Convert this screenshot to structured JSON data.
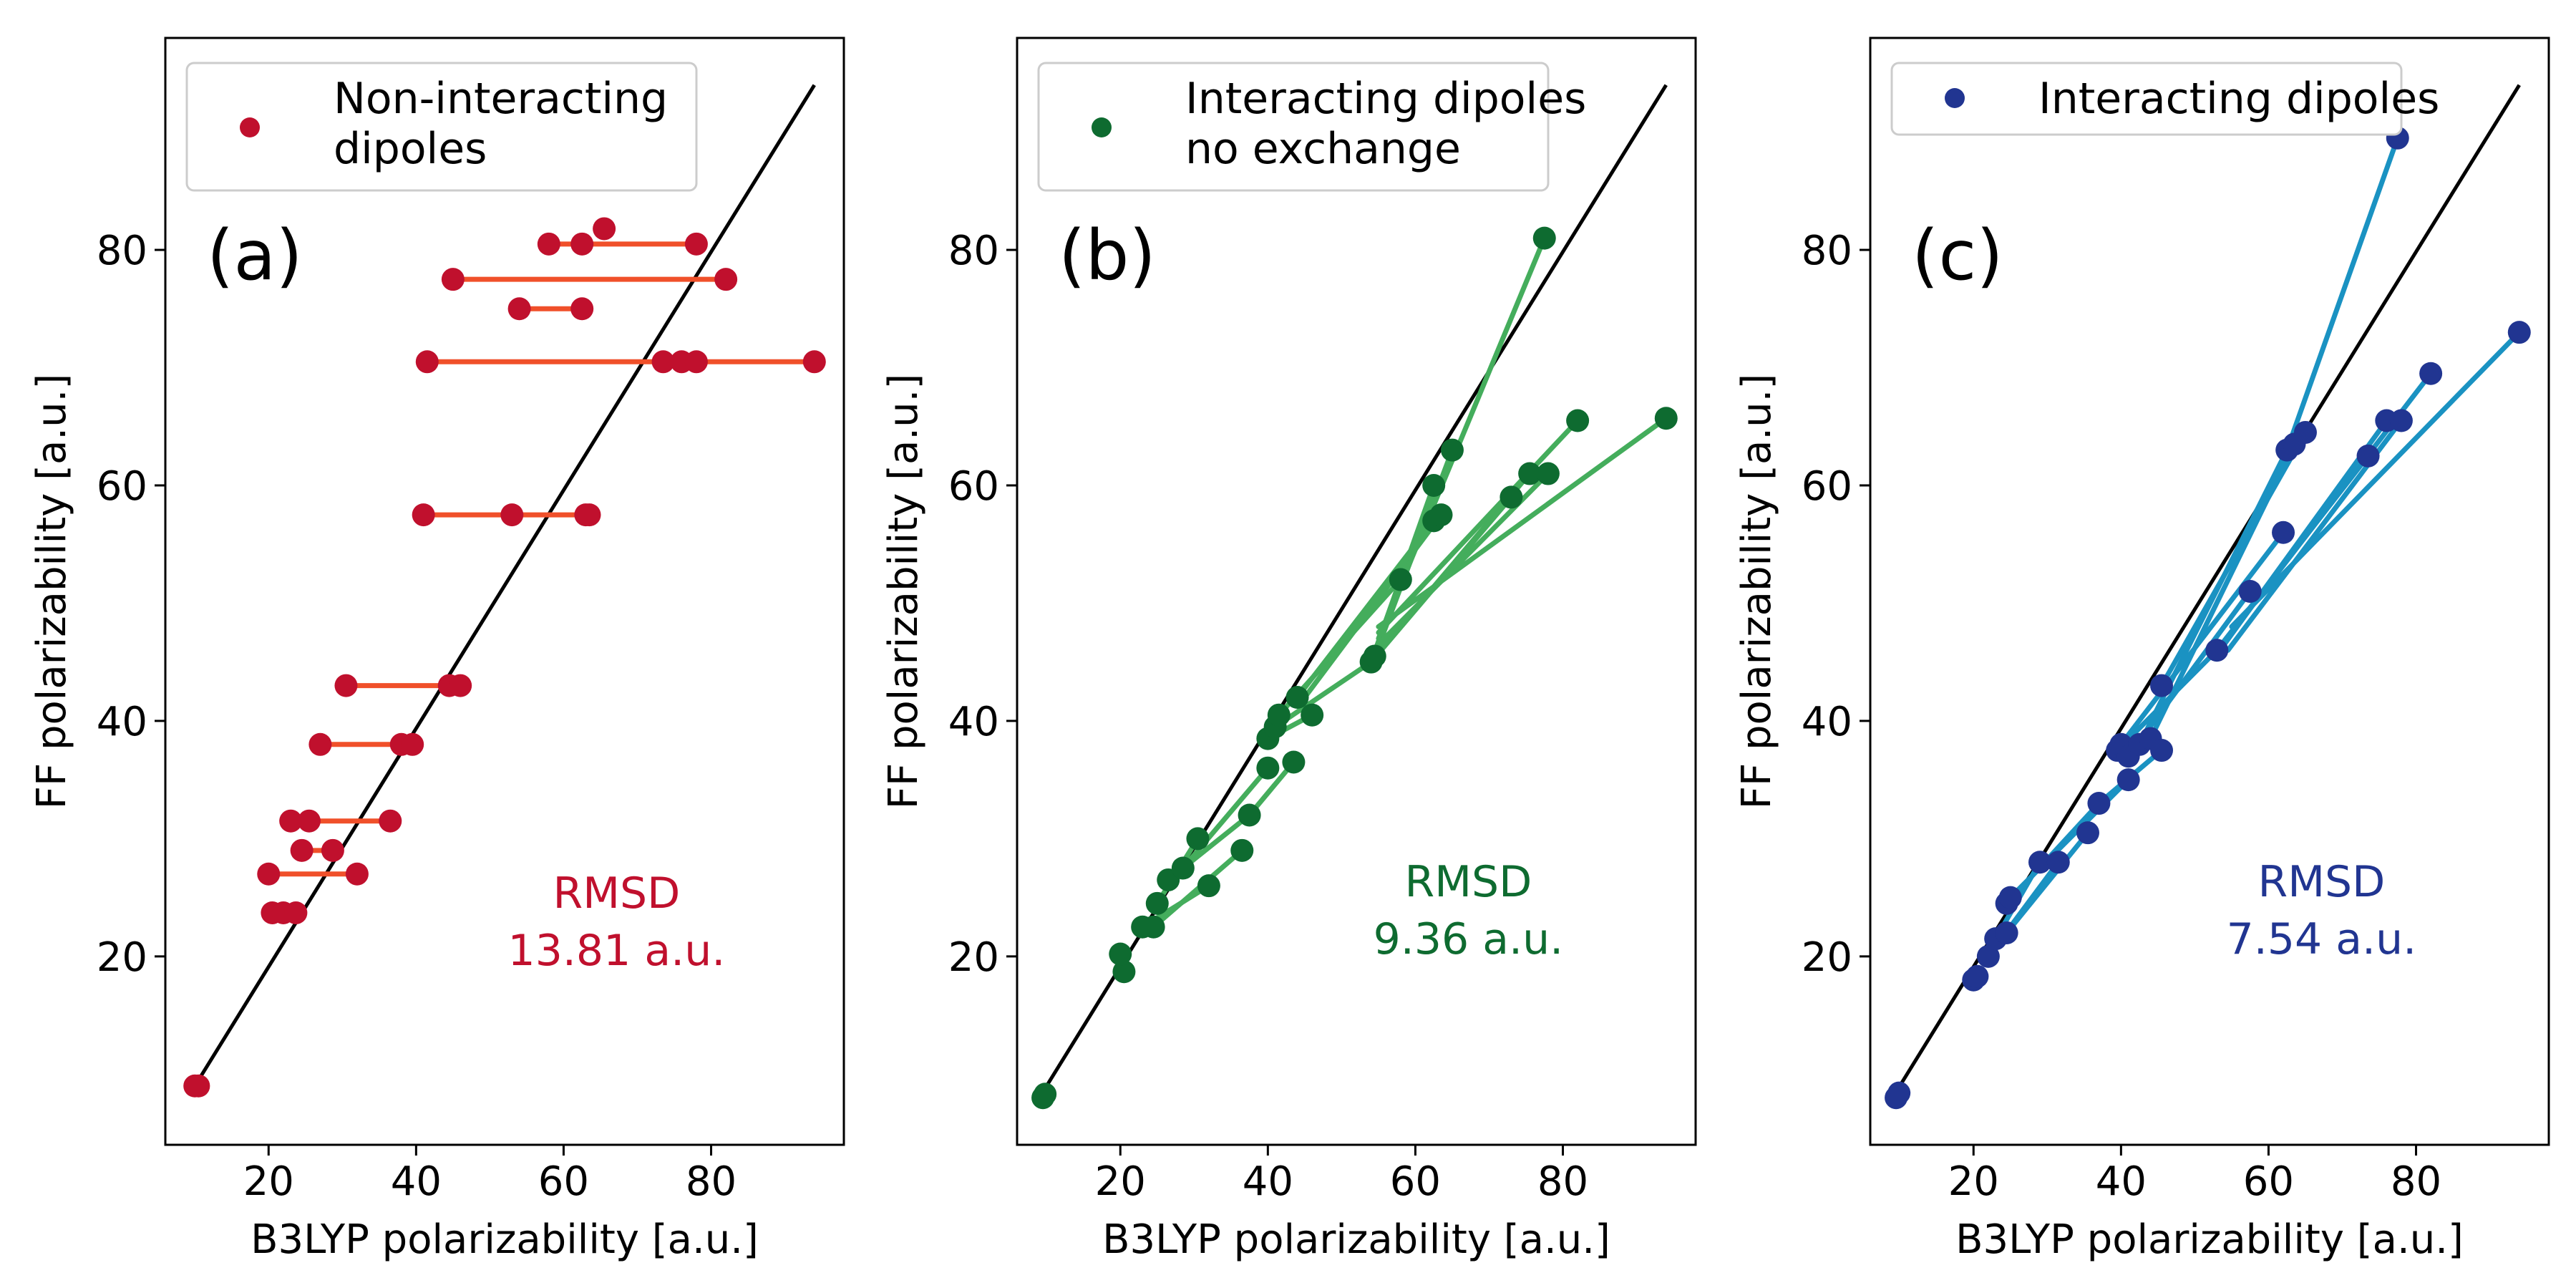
{
  "figure": {
    "xlabel": "B3LYP polarizability [a.u.]",
    "ylabel": "FF polarizability [a.u.]"
  },
  "chart_data": [
    {
      "type": "scatter",
      "panel_label": "(a)",
      "xlabel": "B3LYP polarizability [a.u.]",
      "ylabel": "FF polarizability [a.u.]",
      "xlim": [
        6,
        98
      ],
      "ylim": [
        4,
        98
      ],
      "xticks": [
        20,
        40,
        60,
        80
      ],
      "yticks": [
        20,
        40,
        60,
        80
      ],
      "grid": false,
      "legend": {
        "placement": "top-left",
        "entries": [
          "Non-interacting",
          "dipoles"
        ]
      },
      "annotation": {
        "lines": [
          "RMSD",
          "13.81 a.u."
        ]
      },
      "colors": {
        "marker": "#c0102d",
        "segment": "#f0502a",
        "text": "#c0102d"
      },
      "reference_line": [
        [
          10,
          9
        ],
        [
          94,
          94
        ]
      ],
      "segments": [
        [
          [
            10.0,
            9.0
          ],
          [
            10.5,
            9.0
          ]
        ],
        [
          [
            22.0,
            23.7
          ],
          [
            23.7,
            23.7
          ]
        ],
        [
          [
            20.0,
            27.0
          ],
          [
            32.0,
            27.0
          ]
        ],
        [
          [
            24.5,
            29.0
          ],
          [
            28.7,
            29.0
          ]
        ],
        [
          [
            23.0,
            31.5
          ],
          [
            36.5,
            31.5
          ]
        ],
        [
          [
            27.0,
            38.0
          ],
          [
            39.5,
            38.0
          ]
        ],
        [
          [
            30.5,
            43.0
          ],
          [
            46.0,
            43.0
          ]
        ],
        [
          [
            41.0,
            57.5
          ],
          [
            63.5,
            57.5
          ]
        ],
        [
          [
            41.5,
            70.5
          ],
          [
            94.0,
            70.5
          ]
        ],
        [
          [
            54.0,
            75.0
          ],
          [
            62.5,
            75.0
          ]
        ],
        [
          [
            45.0,
            77.5
          ],
          [
            82.0,
            77.5
          ]
        ],
        [
          [
            58.0,
            80.5
          ],
          [
            78.0,
            80.5
          ]
        ]
      ],
      "points": [
        [
          10.0,
          9.0
        ],
        [
          10.5,
          9.0
        ],
        [
          20.5,
          23.7
        ],
        [
          22.0,
          23.7
        ],
        [
          23.7,
          23.7
        ],
        [
          20.0,
          27.0
        ],
        [
          32.0,
          27.0
        ],
        [
          24.5,
          29.0
        ],
        [
          28.7,
          29.0
        ],
        [
          23.0,
          31.5
        ],
        [
          25.5,
          31.5
        ],
        [
          36.5,
          31.5
        ],
        [
          27.0,
          38.0
        ],
        [
          38.0,
          38.0
        ],
        [
          39.5,
          38.0
        ],
        [
          30.5,
          43.0
        ],
        [
          44.5,
          43.0
        ],
        [
          46.0,
          43.0
        ],
        [
          41.0,
          57.5
        ],
        [
          53.0,
          57.5
        ],
        [
          63.0,
          57.5
        ],
        [
          63.5,
          57.5
        ],
        [
          41.5,
          70.5
        ],
        [
          73.5,
          70.5
        ],
        [
          76.0,
          70.5
        ],
        [
          78.0,
          70.5
        ],
        [
          94.0,
          70.5
        ],
        [
          54.0,
          75.0
        ],
        [
          62.5,
          75.0
        ],
        [
          45.0,
          77.5
        ],
        [
          82.0,
          77.5
        ],
        [
          58.0,
          80.5
        ],
        [
          62.5,
          80.5
        ],
        [
          78.0,
          80.5
        ],
        [
          65.5,
          81.8
        ]
      ]
    },
    {
      "type": "scatter",
      "panel_label": "(b)",
      "xlabel": "B3LYP polarizability [a.u.]",
      "ylabel": "FF polarizability [a.u.]",
      "xlim": [
        6,
        98
      ],
      "ylim": [
        4,
        98
      ],
      "xticks": [
        20,
        40,
        60,
        80
      ],
      "yticks": [
        20,
        40,
        60,
        80
      ],
      "grid": false,
      "legend": {
        "placement": "top-left",
        "entries": [
          "Interacting dipoles",
          "no exchange"
        ]
      },
      "annotation": {
        "lines": [
          "RMSD",
          "9.36 a.u."
        ]
      },
      "colors": {
        "marker": "#0e6b30",
        "segment": "#44ad5c",
        "text": "#0e6b30"
      },
      "reference_line": [
        [
          10,
          9
        ],
        [
          94,
          94
        ]
      ],
      "segments": [
        [
          [
            9.5,
            8.0
          ],
          [
            9.8,
            8.3
          ]
        ],
        [
          [
            20.5,
            18.7
          ],
          [
            20.0,
            20.2
          ]
        ],
        [
          [
            23.0,
            22.5
          ],
          [
            32.0,
            26.0
          ]
        ],
        [
          [
            24.5,
            22.5
          ],
          [
            36.5,
            29.0
          ]
        ],
        [
          [
            25.0,
            24.5
          ],
          [
            30.5,
            30.0
          ]
        ],
        [
          [
            26.5,
            26.5
          ],
          [
            37.5,
            32.0
          ]
        ],
        [
          [
            28.5,
            27.5
          ],
          [
            40.0,
            36.0
          ]
        ],
        [
          [
            37.5,
            32.0
          ],
          [
            43.5,
            36.5
          ]
        ],
        [
          [
            40.0,
            38.5
          ],
          [
            46.0,
            40.5
          ]
        ],
        [
          [
            41.0,
            39.5
          ],
          [
            54.0,
            45.0
          ]
        ],
        [
          [
            41.5,
            40.5
          ],
          [
            58.0,
            52.0
          ]
        ],
        [
          [
            44.0,
            42.0
          ],
          [
            62.5,
            57.0
          ]
        ],
        [
          [
            45.0,
            42.0
          ],
          [
            63.5,
            57.5
          ]
        ],
        [
          [
            54.0,
            45.0
          ],
          [
            62.5,
            60.0
          ]
        ],
        [
          [
            54.5,
            45.5
          ],
          [
            65.0,
            63.0
          ]
        ],
        [
          [
            55.0,
            47.0
          ],
          [
            77.5,
            81.0
          ]
        ],
        [
          [
            54.0,
            45.0
          ],
          [
            73.0,
            59.0
          ]
        ],
        [
          [
            54.5,
            45.5
          ],
          [
            75.5,
            61.0
          ]
        ],
        [
          [
            55.0,
            46.5
          ],
          [
            78.0,
            61.0
          ]
        ],
        [
          [
            55.0,
            47.5
          ],
          [
            82.0,
            65.5
          ]
        ],
        [
          [
            55.0,
            48.0
          ],
          [
            94.0,
            65.7
          ]
        ]
      ],
      "points": [
        [
          9.5,
          8.0
        ],
        [
          9.8,
          8.3
        ],
        [
          20.5,
          18.7
        ],
        [
          20.0,
          20.2
        ],
        [
          23.0,
          22.5
        ],
        [
          24.5,
          22.5
        ],
        [
          25.0,
          24.5
        ],
        [
          26.5,
          26.5
        ],
        [
          28.5,
          27.5
        ],
        [
          30.5,
          30.0
        ],
        [
          32.0,
          26.0
        ],
        [
          36.5,
          29.0
        ],
        [
          37.5,
          32.0
        ],
        [
          40.0,
          36.0
        ],
        [
          43.5,
          36.5
        ],
        [
          40.0,
          38.5
        ],
        [
          41.0,
          39.5
        ],
        [
          41.5,
          40.5
        ],
        [
          44.0,
          42.0
        ],
        [
          46.0,
          40.5
        ],
        [
          54.0,
          45.0
        ],
        [
          54.5,
          45.5
        ],
        [
          58.0,
          52.0
        ],
        [
          62.5,
          57.0
        ],
        [
          63.5,
          57.5
        ],
        [
          62.5,
          60.0
        ],
        [
          65.0,
          63.0
        ],
        [
          77.5,
          81.0
        ],
        [
          73.0,
          59.0
        ],
        [
          75.5,
          61.0
        ],
        [
          78.0,
          61.0
        ],
        [
          82.0,
          65.5
        ],
        [
          94.0,
          65.7
        ]
      ]
    },
    {
      "type": "scatter",
      "panel_label": "(c)",
      "xlabel": "B3LYP polarizability [a.u.]",
      "ylabel": "FF polarizability [a.u.]",
      "xlim": [
        6,
        98
      ],
      "ylim": [
        4,
        98
      ],
      "xticks": [
        20,
        40,
        60,
        80
      ],
      "yticks": [
        20,
        40,
        60,
        80
      ],
      "grid": false,
      "legend": {
        "placement": "top-left",
        "entries": [
          "Interacting dipoles"
        ]
      },
      "annotation": {
        "lines": [
          "RMSD",
          "7.54 a.u."
        ]
      },
      "colors": {
        "marker": "#213591",
        "segment": "#1a92c2",
        "text": "#213591"
      },
      "reference_line": [
        [
          10,
          9
        ],
        [
          94,
          94
        ]
      ],
      "segments": [
        [
          [
            9.5,
            8.0
          ],
          [
            9.9,
            8.4
          ]
        ],
        [
          [
            20.0,
            18.0
          ],
          [
            20.5,
            18.3
          ]
        ],
        [
          [
            22.0,
            20.0
          ],
          [
            31.5,
            28.0
          ]
        ],
        [
          [
            23.0,
            21.5
          ],
          [
            29.0,
            28.0
          ]
        ],
        [
          [
            24.5,
            22.0
          ],
          [
            35.5,
            30.5
          ]
        ],
        [
          [
            24.5,
            24.5
          ],
          [
            37.0,
            33.0
          ]
        ],
        [
          [
            25.0,
            25.0
          ],
          [
            41.0,
            35.0
          ]
        ],
        [
          [
            37.0,
            33.0
          ],
          [
            45.5,
            37.5
          ]
        ],
        [
          [
            39.5,
            37.5
          ],
          [
            53.0,
            46.0
          ]
        ],
        [
          [
            40.0,
            38.0
          ],
          [
            62.0,
            56.0
          ]
        ],
        [
          [
            41.0,
            37.0
          ],
          [
            57.5,
            51.0
          ]
        ],
        [
          [
            42.5,
            38.0
          ],
          [
            62.5,
            63.0
          ]
        ],
        [
          [
            44.0,
            38.5
          ],
          [
            63.5,
            63.5
          ]
        ],
        [
          [
            45.5,
            43.0
          ],
          [
            65.0,
            64.5
          ]
        ],
        [
          [
            53.0,
            46.0
          ],
          [
            73.5,
            62.5
          ]
        ],
        [
          [
            54.0,
            46.5
          ],
          [
            76.0,
            65.5
          ]
        ],
        [
          [
            54.5,
            46.0
          ],
          [
            78.0,
            65.5
          ]
        ],
        [
          [
            55.0,
            47.5
          ],
          [
            82.0,
            69.5
          ]
        ],
        [
          [
            55.0,
            48.0
          ],
          [
            94.0,
            73.0
          ]
        ],
        [
          [
            62.5,
            63.0
          ],
          [
            77.5,
            89.5
          ]
        ]
      ],
      "points": [
        [
          9.5,
          8.0
        ],
        [
          9.9,
          8.4
        ],
        [
          20.0,
          18.0
        ],
        [
          20.5,
          18.3
        ],
        [
          22.0,
          20.0
        ],
        [
          23.0,
          21.5
        ],
        [
          24.5,
          22.0
        ],
        [
          24.5,
          24.5
        ],
        [
          25.0,
          25.0
        ],
        [
          29.0,
          28.0
        ],
        [
          31.5,
          28.0
        ],
        [
          35.5,
          30.5
        ],
        [
          37.0,
          33.0
        ],
        [
          39.5,
          37.5
        ],
        [
          40.0,
          38.0
        ],
        [
          41.0,
          35.0
        ],
        [
          41.0,
          37.0
        ],
        [
          42.5,
          38.0
        ],
        [
          44.0,
          38.5
        ],
        [
          45.5,
          37.5
        ],
        [
          45.5,
          43.0
        ],
        [
          53.0,
          46.0
        ],
        [
          57.5,
          51.0
        ],
        [
          62.0,
          56.0
        ],
        [
          62.5,
          63.0
        ],
        [
          63.5,
          63.5
        ],
        [
          65.0,
          64.5
        ],
        [
          73.5,
          62.5
        ],
        [
          76.0,
          65.5
        ],
        [
          78.0,
          65.5
        ],
        [
          82.0,
          69.5
        ],
        [
          94.0,
          73.0
        ],
        [
          77.5,
          89.5
        ]
      ]
    }
  ]
}
